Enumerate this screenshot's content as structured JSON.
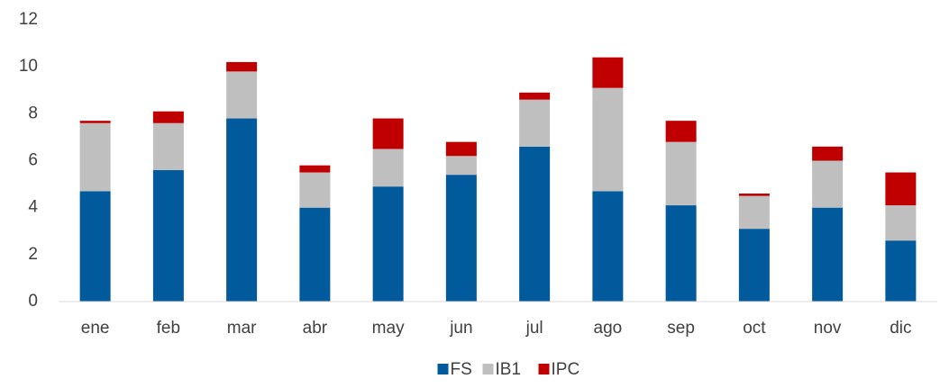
{
  "chart_data": {
    "type": "stacked_bar",
    "categories": [
      "ene",
      "feb",
      "mar",
      "abr",
      "may",
      "jun",
      "jul",
      "ago",
      "sep",
      "oct",
      "nov",
      "dic"
    ],
    "series": [
      {
        "name": "FS",
        "color": "#005a9c",
        "values": [
          4.7,
          5.6,
          7.8,
          4.0,
          4.9,
          5.4,
          6.6,
          4.7,
          4.1,
          3.1,
          4.0,
          2.6
        ]
      },
      {
        "name": "IB1",
        "color": "#bfbfbf",
        "values": [
          2.9,
          2.0,
          2.0,
          1.5,
          1.6,
          0.8,
          2.0,
          4.4,
          2.7,
          1.4,
          2.0,
          1.5
        ]
      },
      {
        "name": "IPC",
        "color": "#c00000",
        "values": [
          0.1,
          0.5,
          0.4,
          0.3,
          1.3,
          0.6,
          0.3,
          1.3,
          0.9,
          0.1,
          0.6,
          1.4
        ]
      }
    ],
    "ylim": [
      0,
      12
    ],
    "yticks": [
      0,
      2,
      4,
      6,
      8,
      10,
      12
    ],
    "grid": false,
    "legend": "bottom"
  }
}
